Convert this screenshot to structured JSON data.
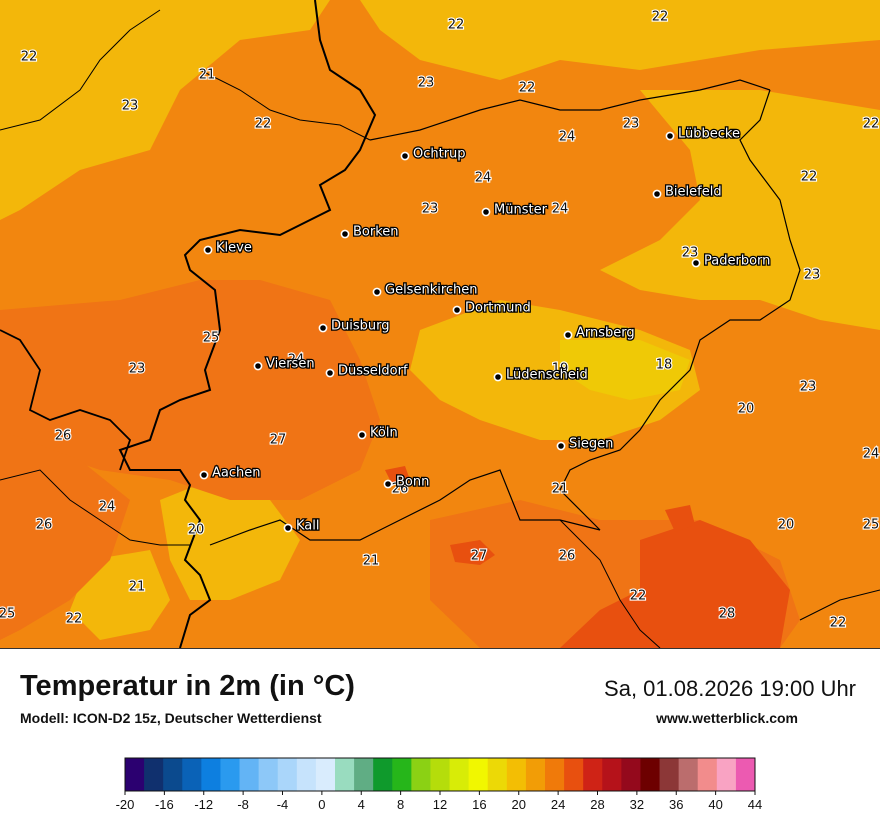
{
  "map": {
    "temperature_labels": [
      "22",
      "22",
      "22",
      "22",
      "21",
      "23",
      "23",
      "22",
      "22",
      "23",
      "22",
      "24",
      "24",
      "23",
      "23",
      "24",
      "23",
      "23",
      "25",
      "24",
      "24",
      "19",
      "18",
      "23",
      "20",
      "26",
      "27",
      "24",
      "26",
      "26",
      "20",
      "21",
      "21",
      "27",
      "26",
      "20",
      "25",
      "21",
      "25",
      "22",
      "22",
      "28",
      "22"
    ],
    "cities": [
      "Lübbecke",
      "Ochtrup",
      "Bielefeld",
      "Münster",
      "Borken",
      "Kleve",
      "Paderborn",
      "Gelsenkirchen",
      "Dortmund",
      "Duisburg",
      "Arnsberg",
      "Viersen",
      "Düsseldorf",
      "Lüdenscheid",
      "Köln",
      "Siegen",
      "Aachen",
      "Bonn",
      "Kall"
    ]
  },
  "footer": {
    "title": "Temperatur in 2m (in °C)",
    "model": "Modell: ICON-D2 15z, Deutscher Wetterdienst",
    "datetime": "Sa, 01.08.2026 19:00 Uhr",
    "website": "www.wetterblick.com"
  },
  "legend": {
    "tick_labels": [
      "-20",
      "-16",
      "-12",
      "-8",
      "-4",
      "0",
      "4",
      "8",
      "12",
      "16",
      "20",
      "24",
      "28",
      "32",
      "36",
      "40",
      "44"
    ],
    "colors": [
      "#2b0070",
      "#10306e",
      "#0b4a8e",
      "#0a62b7",
      "#0d7fe0",
      "#2a9aef",
      "#63b4f5",
      "#8dc8f8",
      "#aad6fa",
      "#c6e3fc",
      "#d9ecfd",
      "#99dcbf",
      "#60ad84",
      "#0f9a2c",
      "#26b61a",
      "#8bd114",
      "#b5dd0b",
      "#d8ec07",
      "#f1f700",
      "#ecd906",
      "#f3be04",
      "#f29d06",
      "#f07a0a",
      "#e8500f",
      "#cf2316",
      "#b5121a",
      "#94091c",
      "#6d0000",
      "#8c3737",
      "#bb6d6d",
      "#f28c8c",
      "#f9a3c3",
      "#ec5ab1"
    ]
  },
  "colors": {
    "warm_orange": "#f2860f",
    "deep_orange": "#f07415",
    "yellow_orange": "#f3b70a",
    "yellow": "#efc906",
    "red_orange": "#e8500f",
    "border_black": "#000000"
  }
}
